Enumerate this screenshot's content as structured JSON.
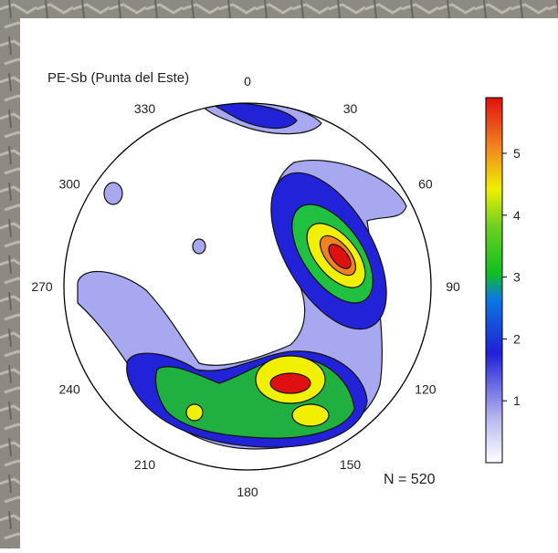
{
  "chart_data": {
    "type": "stereonet-contour",
    "title": "PE-Sb (Punta del Este)",
    "azimuth_ticks": [
      0,
      30,
      60,
      90,
      120,
      150,
      180,
      210,
      240,
      270,
      300,
      330
    ],
    "colorbar": {
      "ylim": [
        0,
        5.9
      ],
      "yticks": [
        1,
        2,
        3,
        4,
        5
      ]
    },
    "annotation": "N = 520"
  }
}
